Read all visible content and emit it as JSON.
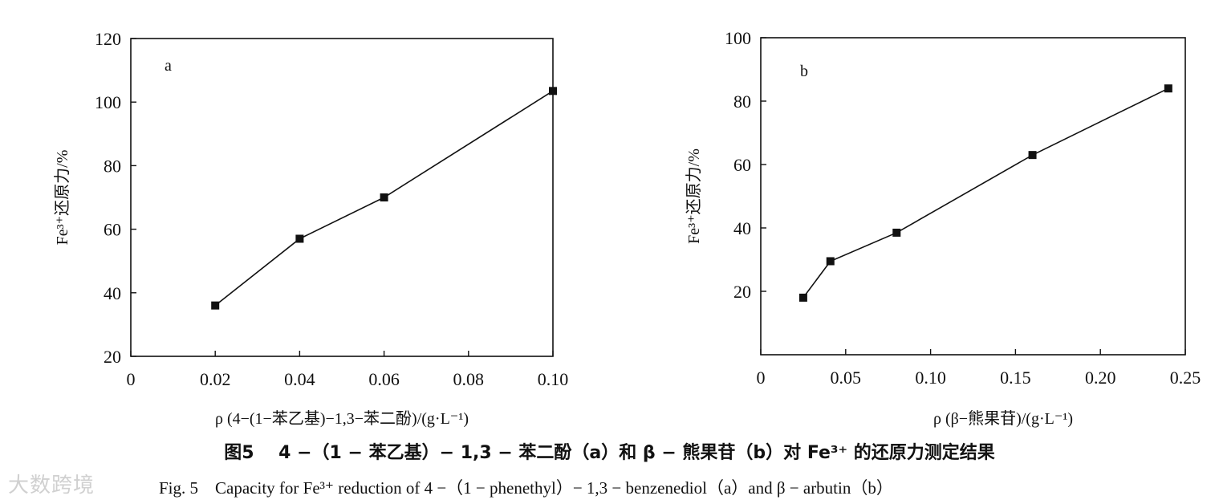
{
  "chart_data": [
    {
      "type": "line",
      "panel_label": "a",
      "xlabel": "ρ (4−(1−苯乙基)−1,3−苯二酚)/(g·L⁻¹)",
      "ylabel": "Fe³⁺还原力/%",
      "xlim": [
        0,
        0.1
      ],
      "ylim": [
        20,
        120
      ],
      "x_ticks": [
        "0",
        "0.02",
        "0.04",
        "0.06",
        "0.08",
        "0.10"
      ],
      "y_ticks": [
        "20",
        "40",
        "60",
        "80",
        "100",
        "120"
      ],
      "grid": false,
      "series": [
        {
          "x": [
            0.02,
            0.04,
            0.06,
            0.1
          ],
          "y": [
            36,
            57,
            70,
            103.5
          ]
        }
      ]
    },
    {
      "type": "line",
      "panel_label": "b",
      "xlabel": "ρ (β−熊果苷)/(g·L⁻¹)",
      "ylabel": "Fe³⁺还原力/%",
      "xlim": [
        0,
        0.25
      ],
      "ylim": [
        0,
        100
      ],
      "x_ticks": [
        "0",
        "0.05",
        "0.10",
        "0.15",
        "0.20",
        "0.25"
      ],
      "y_ticks": [
        "20",
        "40",
        "60",
        "80",
        "100"
      ],
      "grid": false,
      "series": [
        {
          "x": [
            0.025,
            0.041,
            0.08,
            0.16,
            0.24
          ],
          "y": [
            18,
            29.5,
            38.5,
            63,
            84
          ]
        }
      ]
    }
  ],
  "caption": {
    "cn_label": "图5",
    "cn_text": "4 −（1 − 苯乙基）− 1,3 − 苯二酚（a）和 β − 熊果苷（b）对 Fe³⁺ 的还原力测定结果",
    "en_label": "Fig. 5",
    "en_text": "Capacity for Fe³⁺ reduction of 4 −（1 − phenethyl）− 1,3 − benzenediol（a）and β − arbutin（b）"
  },
  "watermark": "大数跨境"
}
